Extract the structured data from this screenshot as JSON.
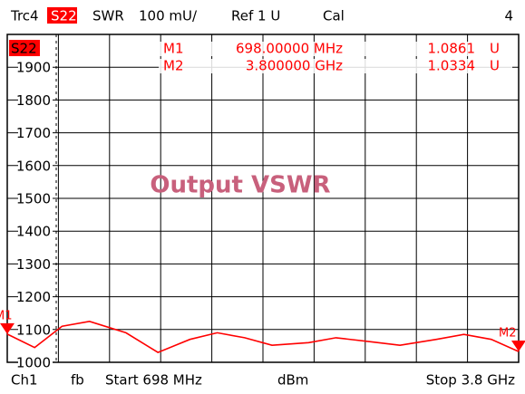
{
  "chart_data": {
    "type": "line",
    "header": [
      "Trc4",
      "S22",
      "SWR",
      "100 mU/",
      "Ref 1 U",
      "Cal",
      "4"
    ],
    "annotation": "Output VSWR",
    "markers": [
      {
        "name": "M1",
        "stimulus": "698.00000 MHz",
        "response": "1.0861",
        "unit": "U"
      },
      {
        "name": "M2",
        "stimulus": "3.800000 GHz",
        "response": "1.0334",
        "unit": "U"
      }
    ],
    "footer": [
      "Ch1",
      "fb",
      "Start 698 MHz",
      "dBm",
      "Stop 3.8 GHz"
    ],
    "x": [
      698,
      864,
      1030,
      1197,
      1418,
      1612,
      1806,
      1972,
      2138,
      2304,
      2526,
      2692,
      2914,
      3080,
      3301,
      3468,
      3634,
      3800
    ],
    "series": [
      {
        "name": "S22",
        "color": "#ff0000",
        "values": [
          1086,
          1045,
          1110,
          1125,
          1090,
          1030,
          1070,
          1090,
          1075,
          1052,
          1060,
          1075,
          1062,
          1052,
          1070,
          1085,
          1070,
          1033
        ]
      }
    ],
    "xlim": [
      698,
      3800
    ],
    "ylim": [
      1000,
      2000
    ],
    "yticks": [
      1000,
      1100,
      1200,
      1300,
      1400,
      1500,
      1600,
      1700,
      1800,
      1900
    ],
    "grid": true
  }
}
